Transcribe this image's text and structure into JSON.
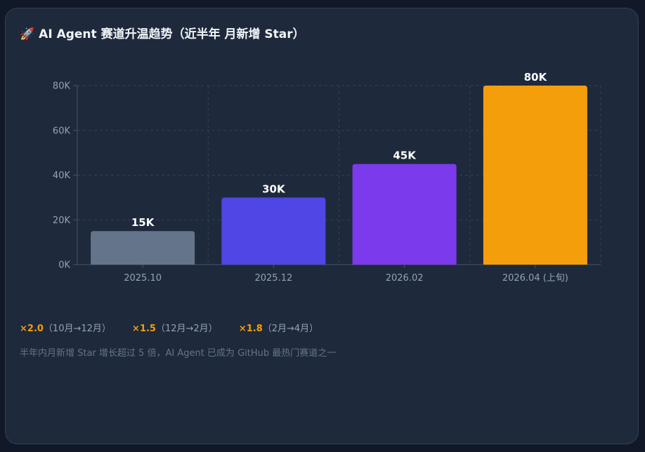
{
  "title": {
    "icon": "rocket-icon",
    "icon_glyph": "🚀",
    "text": "AI Agent 赛道升温趋势（近半年 月新增 Star）"
  },
  "chart_data": {
    "type": "bar",
    "title": "AI Agent 赛道升温趋势（近半年 月新增 Star）",
    "xlabel": "",
    "ylabel": "",
    "categories": [
      "2025.10",
      "2025.12",
      "2026.02",
      "2026.04 (上旬)"
    ],
    "values": [
      15000,
      30000,
      45000,
      80000
    ],
    "data_labels": [
      "15K",
      "30K",
      "45K",
      "80K"
    ],
    "colors": [
      "#64748b",
      "#4f46e5",
      "#7c3aed",
      "#f59e0b"
    ],
    "ylim": [
      0,
      80000
    ],
    "yticks": [
      0,
      20000,
      40000,
      60000,
      80000
    ],
    "ytick_labels": [
      "0K",
      "20K",
      "40K",
      "60K",
      "80K"
    ],
    "grid": true,
    "legend": "none"
  },
  "growth": [
    {
      "mult": "×2.0",
      "range": "（10月→12月）"
    },
    {
      "mult": "×1.5",
      "range": "（12月→2月）"
    },
    {
      "mult": "×1.8",
      "range": "（2月→4月）"
    }
  ],
  "note": "半年内月新增 Star 增长超过 5 倍，AI Agent 已成为 GitHub 最热门赛道之一",
  "colors": {
    "background": "#111827",
    "card": "#1e293b",
    "grid": "#334155",
    "tick_text": "#94a3b8",
    "accent": "#f59e0b"
  }
}
